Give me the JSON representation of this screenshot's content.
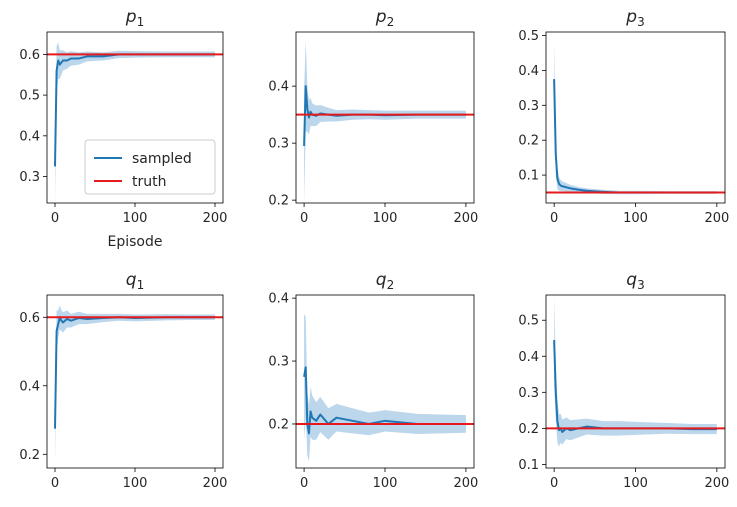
{
  "colors": {
    "sampled": "#1f77b4",
    "band": "#a6c8e6",
    "truth": "#e41a1c"
  },
  "chart_data": [
    {
      "type": "line",
      "title_main": "p",
      "title_sub": "1",
      "xlabel": "Episode",
      "xlim": [
        -10,
        210
      ],
      "ylim": [
        0.235,
        0.655
      ],
      "xticks": [
        0,
        100,
        200
      ],
      "yticks": [
        0.3,
        0.4,
        0.5,
        0.6
      ],
      "ytick_labels": [
        "0.3",
        "0.4",
        "0.5",
        "0.6"
      ],
      "truth": 0.6,
      "legend": {
        "position": "lower-right",
        "entries": [
          "sampled",
          "truth"
        ]
      },
      "series": [
        {
          "name": "sampled",
          "x": [
            0,
            2,
            4,
            6,
            8,
            10,
            15,
            20,
            30,
            40,
            60,
            80,
            100,
            140,
            170,
            200
          ],
          "y": [
            0.325,
            0.56,
            0.585,
            0.575,
            0.58,
            0.585,
            0.585,
            0.59,
            0.59,
            0.595,
            0.595,
            0.6,
            0.6,
            0.6,
            0.6,
            0.6
          ],
          "band": [
            0.09,
            0.06,
            0.045,
            0.035,
            0.03,
            0.025,
            0.02,
            0.018,
            0.015,
            0.012,
            0.01,
            0.009,
            0.008,
            0.007,
            0.007,
            0.007
          ]
        }
      ]
    },
    {
      "type": "line",
      "title_main": "p",
      "title_sub": "2",
      "xlabel": "",
      "xlim": [
        -10,
        210
      ],
      "ylim": [
        0.195,
        0.495
      ],
      "xticks": [
        0,
        100,
        200
      ],
      "yticks": [
        0.2,
        0.3,
        0.4
      ],
      "ytick_labels": [
        "0.2",
        "0.3",
        "0.4"
      ],
      "truth": 0.35,
      "series": [
        {
          "name": "sampled",
          "x": [
            0,
            2,
            4,
            6,
            8,
            10,
            15,
            20,
            30,
            40,
            60,
            80,
            100,
            140,
            170,
            200
          ],
          "y": [
            0.295,
            0.4,
            0.36,
            0.345,
            0.355,
            0.35,
            0.348,
            0.352,
            0.35,
            0.348,
            0.35,
            0.35,
            0.349,
            0.35,
            0.35,
            0.35
          ],
          "band": [
            0.1,
            0.08,
            0.04,
            0.03,
            0.025,
            0.02,
            0.018,
            0.015,
            0.012,
            0.01,
            0.009,
            0.008,
            0.008,
            0.007,
            0.007,
            0.007
          ]
        }
      ]
    },
    {
      "type": "line",
      "title_main": "p",
      "title_sub": "3",
      "xlabel": "",
      "xlim": [
        -10,
        210
      ],
      "ylim": [
        0.02,
        0.51
      ],
      "xticks": [
        0,
        100,
        200
      ],
      "yticks": [
        0.1,
        0.2,
        0.3,
        0.4,
        0.5
      ],
      "ytick_labels": [
        "0.1",
        "0.2",
        "0.3",
        "0.4",
        "0.5"
      ],
      "truth": 0.05,
      "series": [
        {
          "name": "sampled",
          "x": [
            0,
            2,
            4,
            6,
            8,
            10,
            15,
            20,
            30,
            40,
            60,
            80,
            100,
            140,
            170,
            200
          ],
          "y": [
            0.375,
            0.16,
            0.09,
            0.075,
            0.07,
            0.068,
            0.065,
            0.062,
            0.058,
            0.055,
            0.052,
            0.05,
            0.05,
            0.05,
            0.05,
            0.05
          ],
          "band": [
            0.11,
            0.06,
            0.03,
            0.02,
            0.016,
            0.014,
            0.012,
            0.01,
            0.008,
            0.007,
            0.006,
            0.005,
            0.005,
            0.004,
            0.004,
            0.004
          ]
        }
      ]
    },
    {
      "type": "line",
      "title_main": "q",
      "title_sub": "1",
      "xlabel": "",
      "xlim": [
        -10,
        210
      ],
      "ylim": [
        0.16,
        0.665
      ],
      "xticks": [
        0,
        100,
        200
      ],
      "yticks": [
        0.2,
        0.4,
        0.6
      ],
      "ytick_labels": [
        "0.2",
        "0.4",
        "0.6"
      ],
      "truth": 0.6,
      "series": [
        {
          "name": "sampled",
          "x": [
            0,
            2,
            4,
            6,
            8,
            10,
            15,
            20,
            30,
            40,
            60,
            80,
            100,
            140,
            170,
            200
          ],
          "y": [
            0.275,
            0.56,
            0.58,
            0.6,
            0.59,
            0.585,
            0.595,
            0.59,
            0.598,
            0.595,
            0.598,
            0.6,
            0.598,
            0.6,
            0.6,
            0.6
          ],
          "band": [
            0.1,
            0.06,
            0.04,
            0.035,
            0.03,
            0.03,
            0.025,
            0.02,
            0.018,
            0.015,
            0.012,
            0.01,
            0.01,
            0.009,
            0.008,
            0.008
          ]
        }
      ]
    },
    {
      "type": "line",
      "title_main": "q",
      "title_sub": "2",
      "xlabel": "",
      "xlim": [
        -10,
        210
      ],
      "ylim": [
        0.13,
        0.405
      ],
      "xticks": [
        0,
        100,
        200
      ],
      "yticks": [
        0.2,
        0.3,
        0.4
      ],
      "ytick_labels": [
        "0.2",
        "0.3",
        "0.4"
      ],
      "truth": 0.2,
      "series": [
        {
          "name": "sampled",
          "x": [
            0,
            2,
            4,
            6,
            8,
            10,
            15,
            20,
            30,
            40,
            60,
            80,
            100,
            140,
            170,
            200
          ],
          "y": [
            0.275,
            0.29,
            0.2,
            0.185,
            0.22,
            0.21,
            0.205,
            0.215,
            0.2,
            0.21,
            0.205,
            0.2,
            0.205,
            0.2,
            0.2,
            0.2
          ],
          "band": [
            0.1,
            0.08,
            0.05,
            0.045,
            0.04,
            0.035,
            0.03,
            0.028,
            0.025,
            0.022,
            0.02,
            0.018,
            0.017,
            0.016,
            0.015,
            0.014
          ]
        }
      ]
    },
    {
      "type": "line",
      "title_main": "q",
      "title_sub": "3",
      "xlabel": "",
      "xlim": [
        -10,
        210
      ],
      "ylim": [
        0.09,
        0.57
      ],
      "xticks": [
        0,
        100,
        200
      ],
      "yticks": [
        0.1,
        0.2,
        0.3,
        0.4,
        0.5
      ],
      "ytick_labels": [
        "0.1",
        "0.2",
        "0.3",
        "0.4",
        "0.5"
      ],
      "truth": 0.2,
      "series": [
        {
          "name": "sampled",
          "x": [
            0,
            2,
            4,
            6,
            8,
            10,
            15,
            20,
            30,
            40,
            60,
            80,
            100,
            140,
            170,
            200
          ],
          "y": [
            0.445,
            0.3,
            0.22,
            0.195,
            0.2,
            0.19,
            0.2,
            0.195,
            0.2,
            0.205,
            0.2,
            0.2,
            0.2,
            0.2,
            0.198,
            0.198
          ],
          "band": [
            0.12,
            0.08,
            0.06,
            0.045,
            0.04,
            0.035,
            0.03,
            0.028,
            0.025,
            0.022,
            0.02,
            0.02,
            0.018,
            0.015,
            0.014,
            0.014
          ]
        }
      ]
    }
  ]
}
